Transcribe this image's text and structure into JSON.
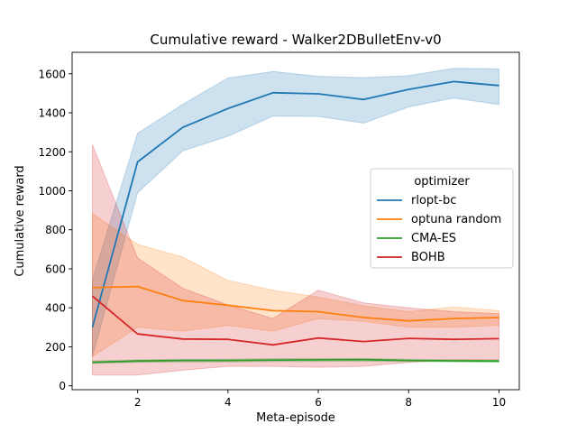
{
  "chart_data": {
    "type": "line",
    "title": "Cumulative reward - Walker2DBulletEnv-v0",
    "xlabel": "Meta-episode",
    "ylabel": "Cumulative reward",
    "x": [
      1,
      2,
      3,
      4,
      5,
      6,
      7,
      8,
      9,
      10
    ],
    "xlim": [
      0.55,
      10.45
    ],
    "ylim": [
      -20,
      1710
    ],
    "xticks": [
      2,
      4,
      6,
      8,
      10
    ],
    "yticks": [
      0,
      200,
      400,
      600,
      800,
      1000,
      1200,
      1400,
      1600
    ],
    "grid": false,
    "legend": {
      "title": "optimizer",
      "placement": "center-right"
    },
    "series": [
      {
        "name": "rlopt-bc",
        "color": "#1f77b4",
        "values": [
          300,
          1148,
          1325,
          1422,
          1503,
          1497,
          1468,
          1520,
          1560,
          1540
        ],
        "lower": [
          150,
          990,
          1205,
          1280,
          1383,
          1381,
          1347,
          1430,
          1476,
          1442
        ],
        "upper": [
          545,
          1295,
          1443,
          1578,
          1612,
          1587,
          1580,
          1590,
          1628,
          1625
        ]
      },
      {
        "name": "optuna random",
        "color": "#ff7f0e",
        "values": [
          503,
          509,
          437,
          413,
          385,
          380,
          350,
          333,
          345,
          350
        ],
        "lower": [
          150,
          300,
          280,
          310,
          280,
          345,
          330,
          300,
          300,
          310
        ],
        "upper": [
          883,
          725,
          660,
          540,
          490,
          455,
          410,
          380,
          405,
          385
        ]
      },
      {
        "name": "CMA-ES",
        "color": "#2ca02c",
        "values": [
          120,
          127,
          130,
          130,
          132,
          133,
          134,
          130,
          128,
          127
        ],
        "lower": [
          115,
          120,
          122,
          122,
          125,
          125,
          126,
          124,
          122,
          120
        ],
        "upper": [
          128,
          133,
          136,
          137,
          139,
          140,
          140,
          136,
          134,
          132
        ]
      },
      {
        "name": "BOHB",
        "color": "#d62728",
        "values": [
          460,
          266,
          240,
          238,
          210,
          245,
          227,
          243,
          238,
          242
        ],
        "lower": [
          55,
          55,
          80,
          100,
          100,
          95,
          100,
          120,
          135,
          135
        ],
        "upper": [
          1237,
          655,
          500,
          415,
          345,
          490,
          425,
          400,
          380,
          370
        ]
      }
    ]
  }
}
